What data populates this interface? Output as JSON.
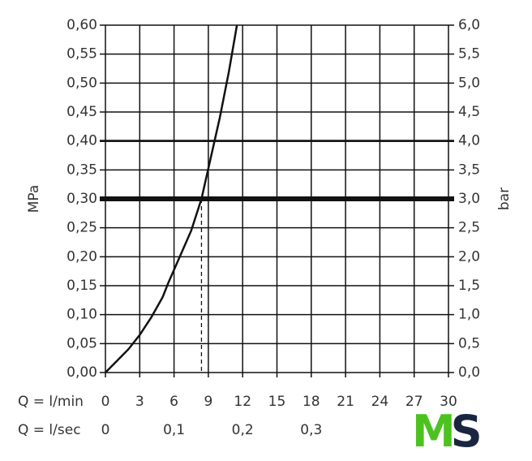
{
  "chart_data": {
    "type": "line",
    "y_label": "MPa",
    "y2_label": "bar",
    "x_label": "Q = l/min",
    "x2_label": "Q = l/sec",
    "x": [
      0,
      1,
      2,
      3,
      4,
      5,
      5.5,
      6.5,
      7.5,
      8.4,
      9.2,
      10,
      10.8,
      11.5
    ],
    "series": [
      {
        "color": "#111111",
        "values": [
          0,
          0.02,
          0.04,
          0.065,
          0.095,
          0.13,
          0.155,
          0.2,
          0.245,
          0.3,
          0.37,
          0.44,
          0.52,
          0.6
        ]
      }
    ],
    "xlim": [
      0,
      30
    ],
    "xticks": [
      0,
      3,
      6,
      9,
      12,
      15,
      18,
      21,
      24,
      27,
      30
    ],
    "x2lim": [
      0,
      0.5
    ],
    "x2ticks": [
      0,
      {
        "value": 0.1,
        "label": "0,1"
      },
      {
        "value": 0.2,
        "label": "0,2"
      },
      {
        "value": 0.3,
        "label": "0,3"
      }
    ],
    "ylim": [
      0,
      0.6
    ],
    "yticks": [
      {
        "value": 0,
        "label": "0,00"
      },
      {
        "value": 0.05,
        "label": "0,05"
      },
      {
        "value": 0.1,
        "label": "0,10"
      },
      {
        "value": 0.15,
        "label": "0,15"
      },
      {
        "value": 0.2,
        "label": "0,20"
      },
      {
        "value": 0.25,
        "label": "0,25"
      },
      {
        "value": 0.3,
        "label": "0,30"
      },
      {
        "value": 0.35,
        "label": "0,35"
      },
      {
        "value": 0.4,
        "label": "0,40"
      },
      {
        "value": 0.45,
        "label": "0,45"
      },
      {
        "value": 0.5,
        "label": "0,50"
      },
      {
        "value": 0.55,
        "label": "0,55"
      },
      {
        "value": 0.6,
        "label": "0,60"
      }
    ],
    "y2lim": [
      0,
      6
    ],
    "y2ticks": [
      {
        "value": 0,
        "label": "0,0"
      },
      {
        "value": 0.5,
        "label": "0,5"
      },
      {
        "value": 1,
        "label": "1,0"
      },
      {
        "value": 1.5,
        "label": "1,5"
      },
      {
        "value": 2,
        "label": "2,0"
      },
      {
        "value": 2.5,
        "label": "2,5"
      },
      {
        "value": 3,
        "label": "3,0"
      },
      {
        "value": 3.5,
        "label": "3,5"
      },
      {
        "value": 4,
        "label": "4,0"
      },
      {
        "value": 4.5,
        "label": "4,5"
      },
      {
        "value": 5,
        "label": "5,0"
      },
      {
        "value": 5.5,
        "label": "5,5"
      },
      {
        "value": 6,
        "label": "6,0"
      }
    ],
    "grid": true,
    "reference_y": 0.3,
    "bold_y": 0.4,
    "marker_x": 8.4
  },
  "logo": {
    "first": "M",
    "second": "S",
    "first_color": "#4cc21f",
    "second_color": "#1a2540"
  }
}
